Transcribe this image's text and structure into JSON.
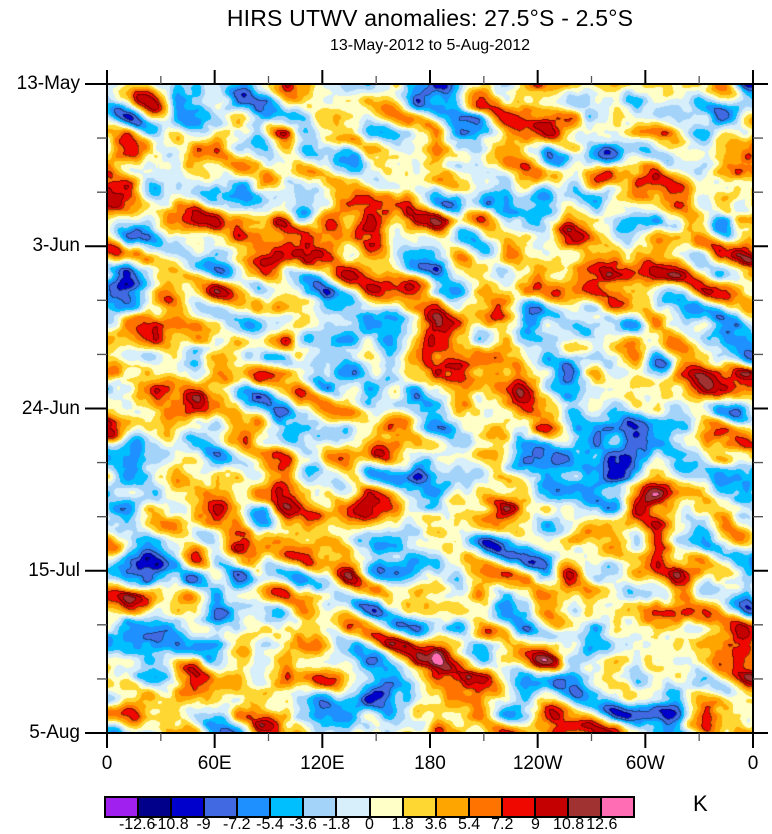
{
  "chart_data": {
    "type": "heatmap",
    "subtype": "filled_contour_hovmoller",
    "title": "HIRS UTWV anomalies: 27.5°S - 2.5°S",
    "subtitle": "13-May-2012 to 5-Aug-2012",
    "x_axis": {
      "kind": "longitude",
      "tick_labels": [
        "0",
        "60E",
        "120E",
        "180",
        "120W",
        "60W",
        "0"
      ],
      "range_deg": [
        0,
        360
      ],
      "minor_ticks_between_majors": 1
    },
    "y_axis": {
      "kind": "time",
      "direction": "downward",
      "tick_labels": [
        "13-May",
        "3-Jun",
        "24-Jun",
        "15-Jul",
        "5-Aug"
      ],
      "minor_ticks_between_majors": 2
    },
    "colorbar": {
      "units": "K",
      "levels": [
        -12.6,
        -10.8,
        -9,
        -7.2,
        -5.4,
        -3.6,
        -1.8,
        0,
        1.8,
        3.6,
        5.4,
        7.2,
        9,
        10.8,
        12.6
      ],
      "level_labels": [
        "-12.6",
        "-10.8",
        "-9",
        "-7.2",
        "-5.4",
        "-3.6",
        "-1.8",
        "0",
        "1.8",
        "3.6",
        "5.4",
        "7.2",
        "9",
        "10.8",
        "12.6"
      ],
      "colors": [
        "#A020F0",
        "#00008B",
        "#0000CD",
        "#4169E1",
        "#1E90FF",
        "#00BFFF",
        "#A4D3F9",
        "#D7EEFB",
        "#FFFFC8",
        "#FFD732",
        "#FFA500",
        "#FF7300",
        "#EE0800",
        "#C40000",
        "#A03232",
        "#FF6EB4"
      ]
    },
    "field_generator": {
      "comment": "pseudo-random smooth anomaly field statistically resembling the original",
      "seed": 11,
      "streak_slope": 0.42,
      "octaves": [
        {
          "fx": 48,
          "fy": 23,
          "amp": 1.0,
          "sheared": true
        },
        {
          "fx": 22,
          "fy": 17,
          "amp": 0.5,
          "sheared": false
        },
        {
          "fx": 10,
          "fy": 8,
          "amp": 0.2,
          "sheared": false
        }
      ],
      "amplitude_k": 8.8,
      "bias_k": 0.5
    }
  }
}
